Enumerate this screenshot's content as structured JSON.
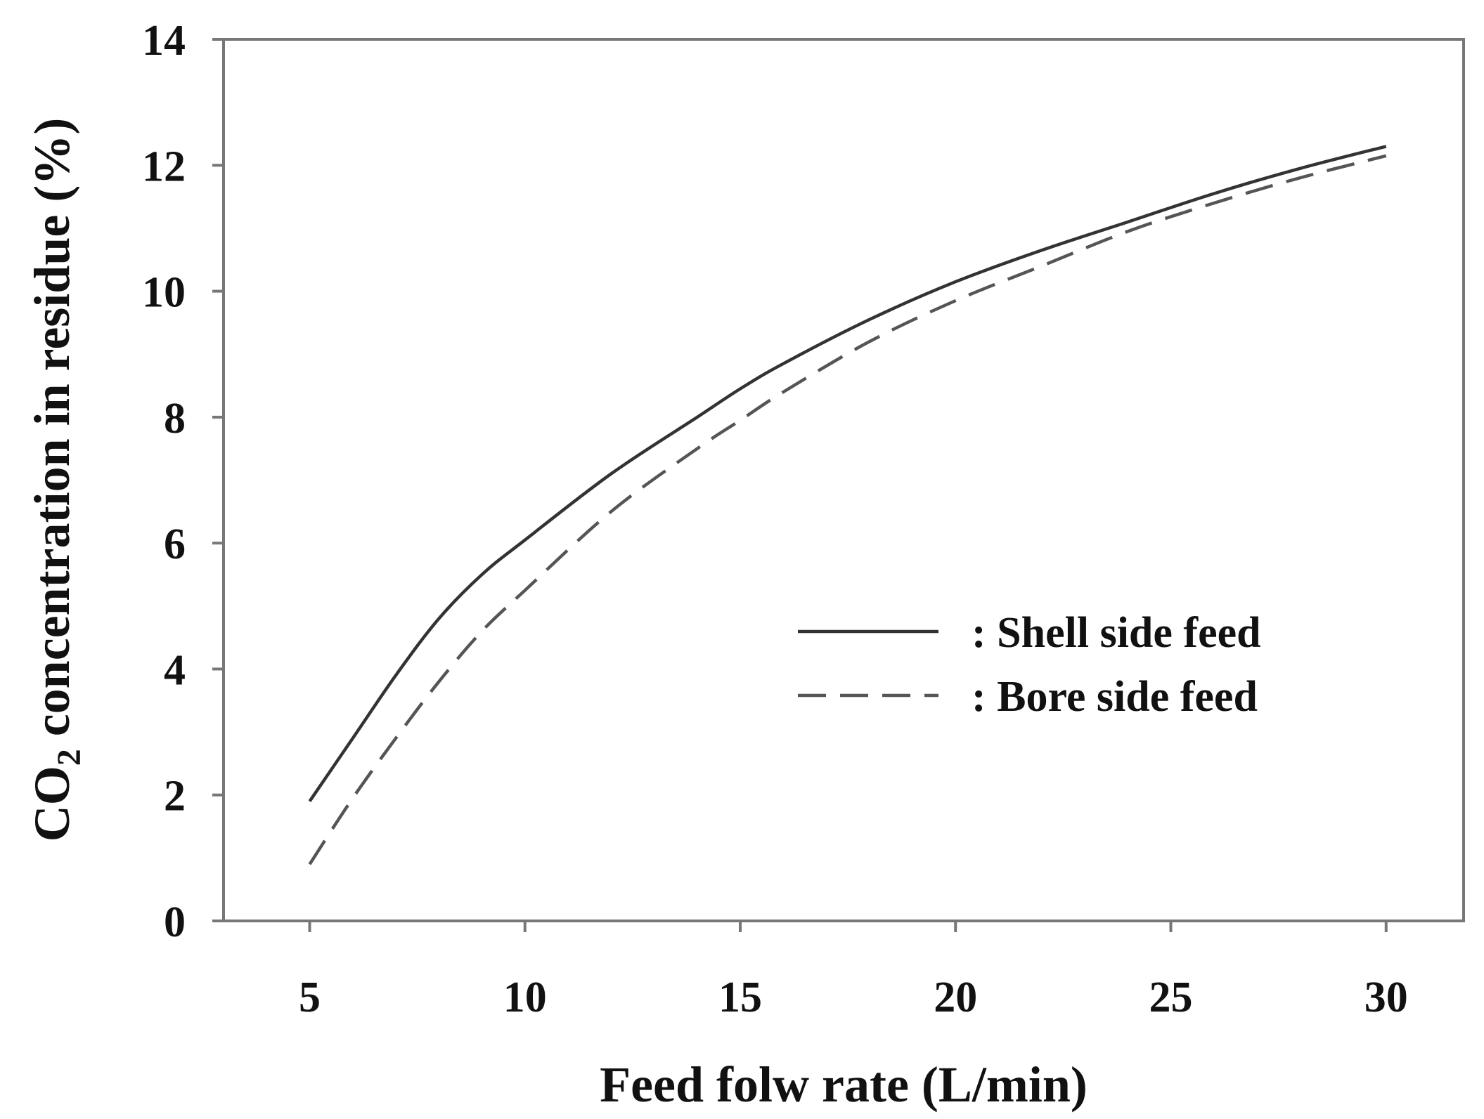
{
  "chart_data": {
    "type": "line",
    "title": "",
    "xlabel": "Feed folw rate (L/min)",
    "ylabel": {
      "prefix": "CO",
      "subscript": "2",
      "suffix": " concentration in residue (%)"
    },
    "xlim": [
      3,
      31.8
    ],
    "ylim": [
      0,
      14
    ],
    "xticks": [
      5,
      10,
      15,
      20,
      25,
      30
    ],
    "yticks": [
      0,
      2,
      4,
      6,
      8,
      10,
      12,
      14
    ],
    "grid": false,
    "legend_position": "middle-right",
    "series": [
      {
        "name": "Shell side feed",
        "style": "solid",
        "color": "#333333",
        "legend_label": ":  Shell side feed",
        "x": [
          5,
          6,
          7,
          8,
          9,
          10,
          12,
          14,
          15,
          16,
          18,
          20,
          22,
          24,
          26,
          28,
          30
        ],
        "y": [
          1.9,
          2.9,
          3.9,
          4.8,
          5.5,
          6.05,
          7.1,
          8.0,
          8.45,
          8.85,
          9.55,
          10.15,
          10.65,
          11.1,
          11.55,
          11.95,
          12.3
        ]
      },
      {
        "name": "Bore side feed",
        "style": "dashed",
        "color": "#555555",
        "legend_label": ":  Bore side feed",
        "x": [
          5,
          6,
          7,
          8,
          9,
          10,
          12,
          14,
          15,
          16,
          18,
          20,
          22,
          24,
          26,
          28,
          30
        ],
        "y": [
          0.9,
          1.95,
          2.9,
          3.8,
          4.6,
          5.25,
          6.5,
          7.5,
          7.95,
          8.4,
          9.2,
          9.85,
          10.4,
          10.95,
          11.4,
          11.8,
          12.15
        ]
      }
    ]
  }
}
